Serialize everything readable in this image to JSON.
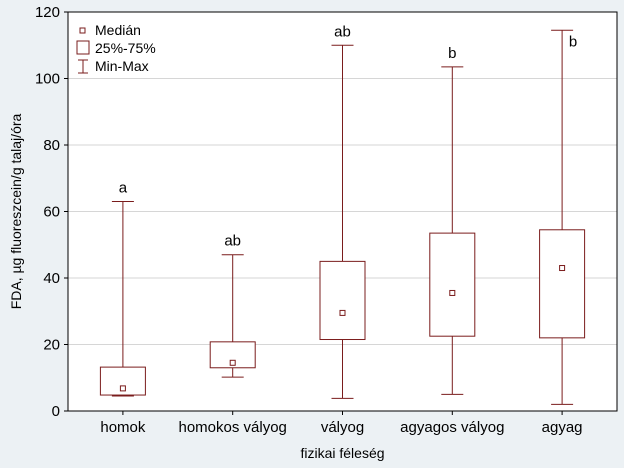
{
  "chart_data": {
    "type": "boxplot",
    "title": "",
    "xlabel": "fizikai féleség",
    "ylabel": "FDA, µg fluoreszcein/g talaj/óra",
    "ylim": [
      0,
      120
    ],
    "yticks": [
      0,
      20,
      40,
      60,
      80,
      100,
      120
    ],
    "grid": true,
    "legend_position": "top-left",
    "legend": [
      {
        "symbol": "median-marker",
        "label": "Medián"
      },
      {
        "symbol": "box",
        "label": "25%-75%"
      },
      {
        "symbol": "whisker",
        "label": "Min-Max"
      }
    ],
    "categories": [
      "homok",
      "homokos vályog",
      "vályog",
      "agyagos vályog",
      "agyag"
    ],
    "series": [
      {
        "category": "homok",
        "min": 4.5,
        "q1": 4.8,
        "median": 6.8,
        "q3": 13.2,
        "max": 63,
        "sig": "a"
      },
      {
        "category": "homokos vályog",
        "min": 10.2,
        "q1": 13,
        "median": 14.5,
        "q3": 20.8,
        "max": 47,
        "sig": "ab"
      },
      {
        "category": "vályog",
        "min": 3.8,
        "q1": 21.5,
        "median": 29.5,
        "q3": 45,
        "max": 110,
        "sig": "ab"
      },
      {
        "category": "agyagos vályog",
        "min": 5,
        "q1": 22.5,
        "median": 35.5,
        "q3": 53.5,
        "max": 103.5,
        "sig": "b"
      },
      {
        "category": "agyag",
        "min": 2,
        "q1": 22,
        "median": 43,
        "q3": 54.5,
        "max": 114.5,
        "sig": "b"
      }
    ],
    "colors": {
      "line": "#7a1c1c",
      "background": "#ecf1f4",
      "plot_background": "#ffffff",
      "grid": "#d6d6d6",
      "axis": "#000000"
    }
  }
}
